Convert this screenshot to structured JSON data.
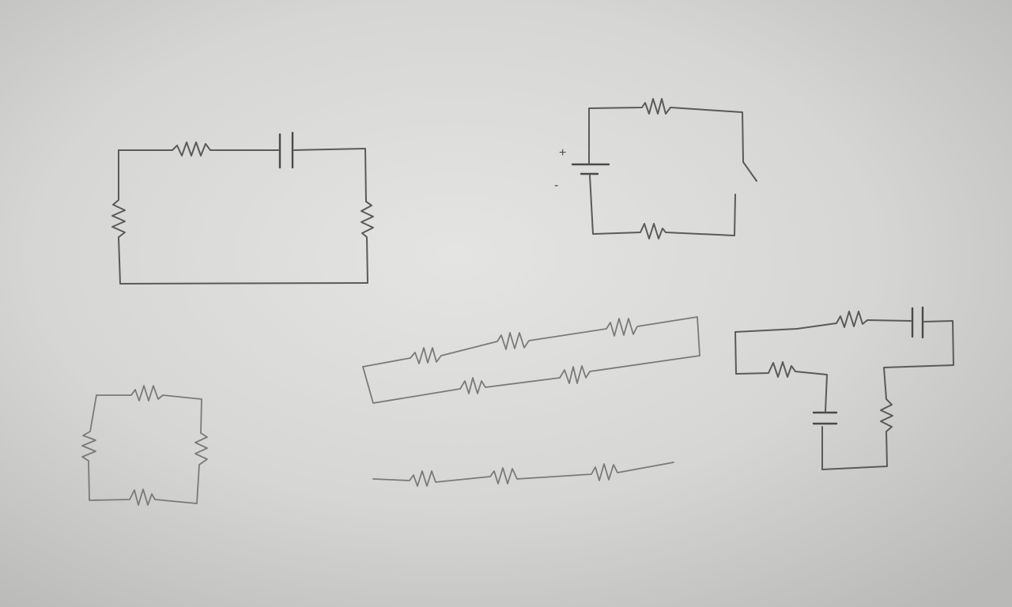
{
  "battery": {
    "plus_label": "+",
    "minus_label": "-"
  },
  "colors": {
    "paper": "#c9c9c7",
    "pencil": "#5a5a5a"
  }
}
